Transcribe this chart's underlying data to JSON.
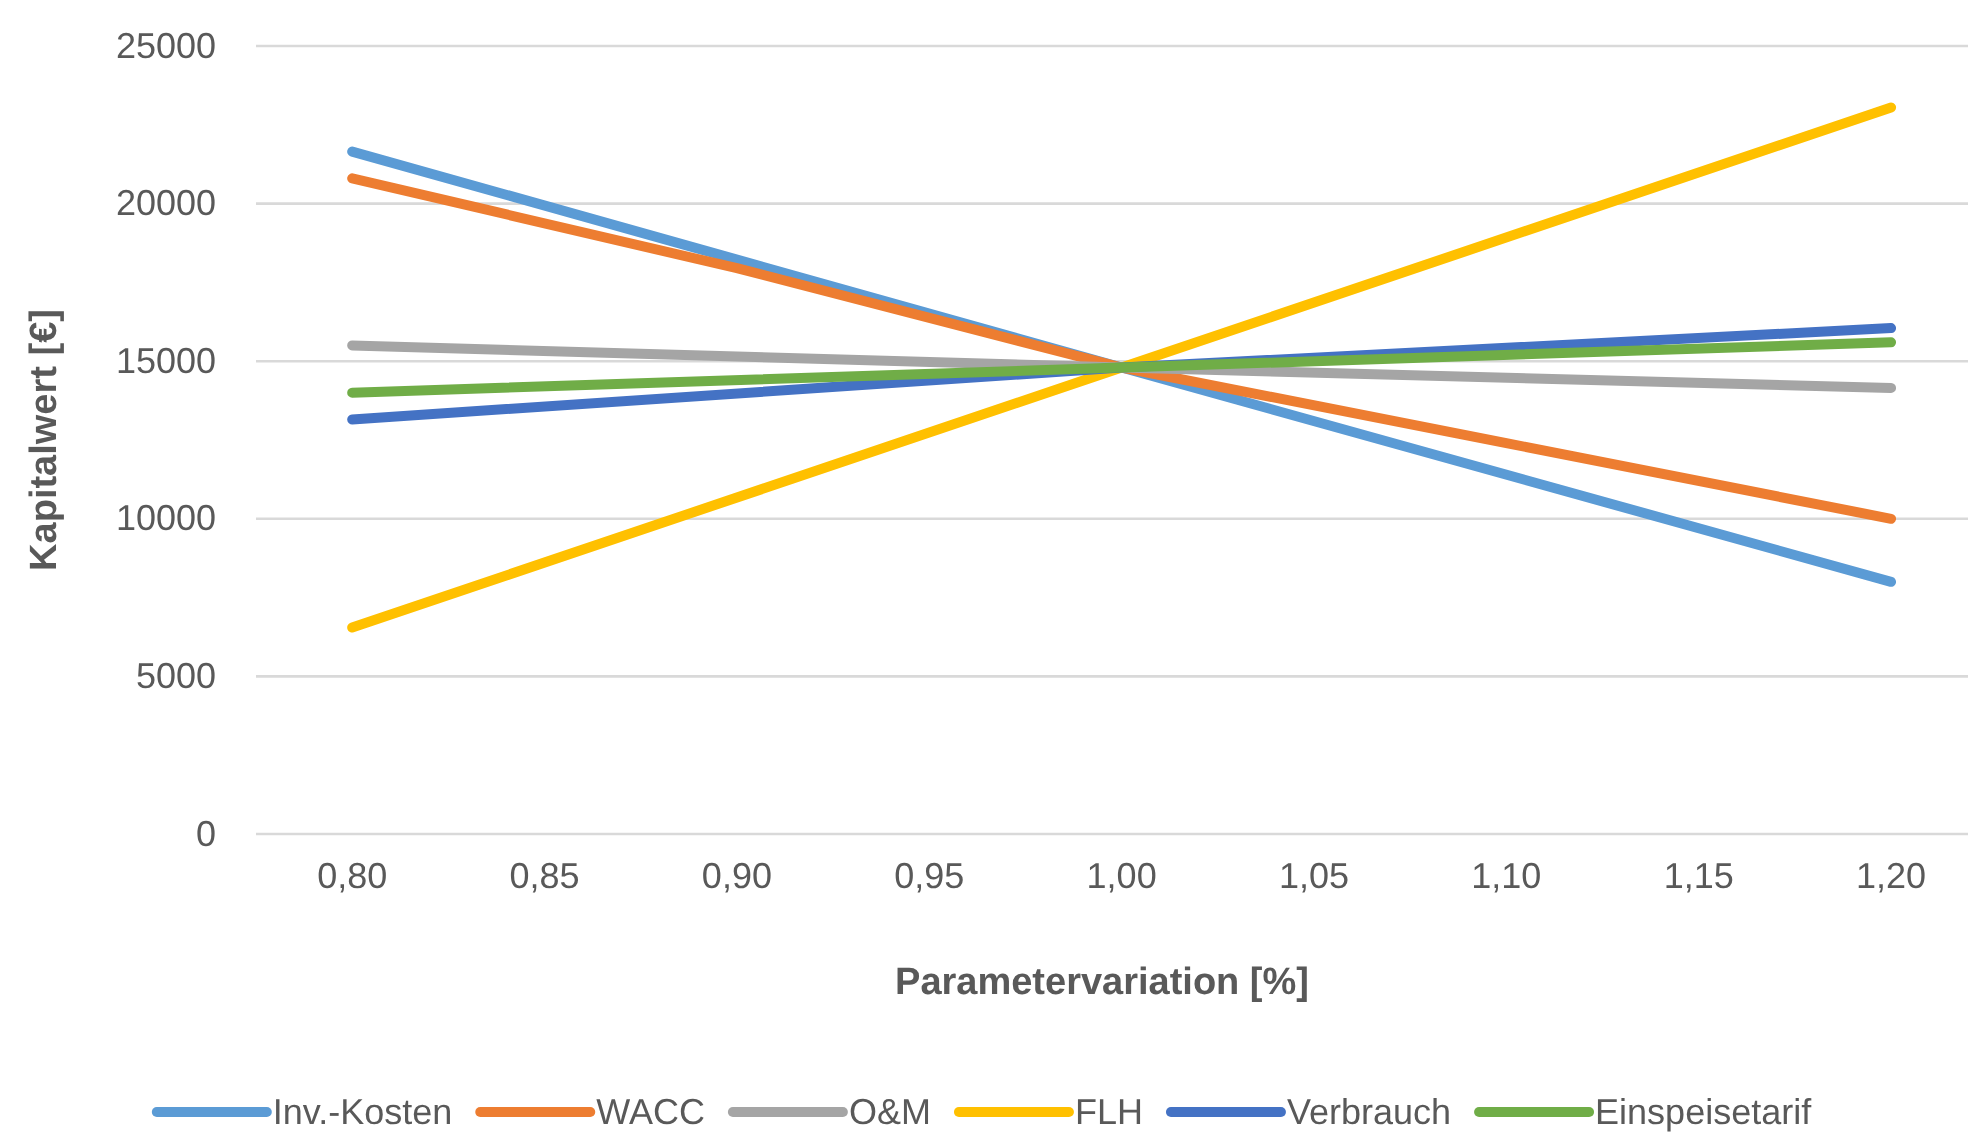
{
  "chart_data": {
    "type": "line",
    "xlabel": "Parametervariation [%]",
    "ylabel": "Kapitalwert [€]",
    "xlim": [
      0.775,
      1.22
    ],
    "xticks": [
      {
        "value": 0.8,
        "label": "0,80"
      },
      {
        "value": 0.85,
        "label": "0,85"
      },
      {
        "value": 0.9,
        "label": "0,90"
      },
      {
        "value": 0.95,
        "label": "0,95"
      },
      {
        "value": 1.0,
        "label": "1,00"
      },
      {
        "value": 1.05,
        "label": "1,05"
      },
      {
        "value": 1.1,
        "label": "1,10"
      },
      {
        "value": 1.15,
        "label": "1,15"
      },
      {
        "value": 1.2,
        "label": "1,20"
      }
    ],
    "ylim": [
      0,
      25000
    ],
    "yticks": [
      0,
      5000,
      10000,
      15000,
      20000,
      25000
    ],
    "grid": "y",
    "legend": "bottom",
    "marker": "none",
    "line_style": "solid",
    "series": [
      {
        "name": "Inv.-Kosten",
        "color": "#5b9bd5",
        "x": [
          0.8,
          1.0,
          1.2
        ],
        "values": [
          21650,
          14800,
          8000
        ]
      },
      {
        "name": "WACC",
        "color": "#ed7d31",
        "x": [
          0.8,
          0.9,
          1.0,
          1.1,
          1.2
        ],
        "values": [
          20800,
          17950,
          14800,
          12400,
          10000
        ]
      },
      {
        "name": "O&M",
        "color": "#a5a5a5",
        "x": [
          0.8,
          1.0,
          1.2
        ],
        "values": [
          15500,
          14800,
          14150
        ]
      },
      {
        "name": "FLH",
        "color": "#ffc000",
        "x": [
          0.8,
          1.0,
          1.2
        ],
        "values": [
          6550,
          14800,
          23050
        ]
      },
      {
        "name": "Verbrauch",
        "color": "#4472c4",
        "x": [
          0.8,
          1.0,
          1.2
        ],
        "values": [
          13150,
          14800,
          16050
        ]
      },
      {
        "name": "Einspeisetarif",
        "color": "#70ad47",
        "x": [
          0.8,
          1.0,
          1.2
        ],
        "values": [
          14000,
          14800,
          15600
        ]
      }
    ]
  }
}
